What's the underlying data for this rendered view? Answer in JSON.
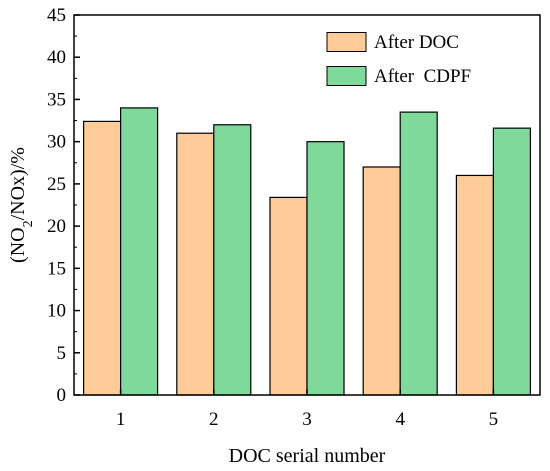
{
  "chart_data": {
    "type": "bar",
    "categories": [
      "1",
      "2",
      "3",
      "4",
      "5"
    ],
    "series": [
      {
        "name": "After DOC",
        "values": [
          32.4,
          31.0,
          23.4,
          27.0,
          26.0
        ]
      },
      {
        "name": "After  CDPF",
        "values": [
          34.0,
          32.0,
          30.0,
          33.5,
          31.6
        ]
      }
    ],
    "colors": [
      "#FFCC99",
      "#7FD99A"
    ],
    "xlabel": "DOC serial number",
    "ylabel": {
      "prefix": "(NO",
      "sub": "2",
      "suffix": "/NOx)/%"
    },
    "ylim": [
      0,
      45
    ],
    "yticks": [
      0,
      5,
      10,
      15,
      20,
      25,
      30,
      35,
      40,
      45
    ],
    "legend_position": "top-right",
    "grid": false
  }
}
